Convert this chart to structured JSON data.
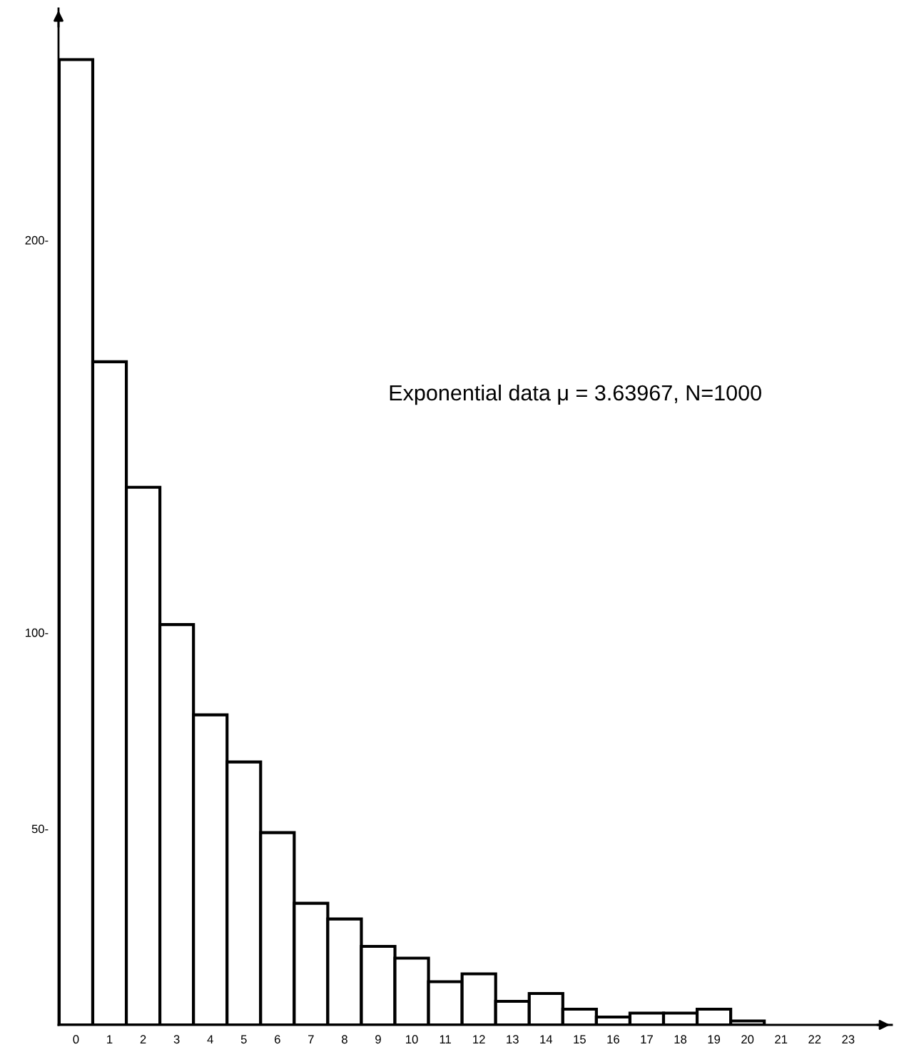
{
  "chart_data": {
    "type": "bar",
    "categories": [
      "0",
      "1",
      "2",
      "3",
      "4",
      "5",
      "6",
      "7",
      "8",
      "9",
      "10",
      "11",
      "12",
      "13",
      "14",
      "15",
      "16",
      "17",
      "18",
      "19",
      "20",
      "21",
      "22",
      "23"
    ],
    "values": [
      246,
      169,
      137,
      102,
      79,
      67,
      49,
      31,
      27,
      20,
      17,
      11,
      13,
      6,
      8,
      4,
      2,
      3,
      3,
      4,
      1,
      null,
      null,
      null
    ],
    "color": "#ffffff",
    "ylim": [
      0,
      259
    ],
    "yticks": [
      {
        "value": 50,
        "label": "50-"
      },
      {
        "value": 100,
        "label": "100-"
      },
      {
        "value": 200,
        "label": "200-"
      }
    ],
    "annotations": [
      "Exponential data μ = 3.63967, N=1000"
    ],
    "grid": false,
    "legend": false
  }
}
